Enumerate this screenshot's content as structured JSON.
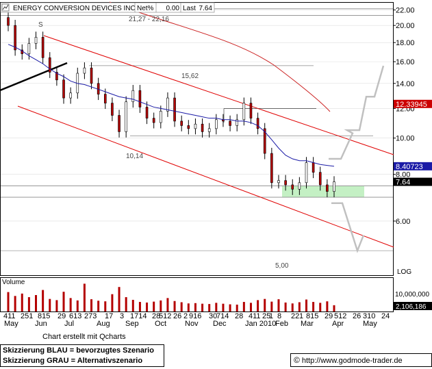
{
  "header": {
    "name": "ENERGY CONVERSION DEVICES INC",
    "net_label": "Net%",
    "net_value": "0.00",
    "last_label": "Last",
    "last_value": "7.64"
  },
  "price_axis": {
    "ticks": [
      "22.00",
      "20.00",
      "18.00",
      "16.00",
      "14.00",
      "12.00",
      "10.00",
      "8.00",
      "6.00"
    ],
    "scale_label": "LOG"
  },
  "price_tags": [
    {
      "text": "12.33945",
      "bg": "#cc0000",
      "fg": "#ffffff"
    },
    {
      "text": "8.40723",
      "bg": "#1a1aa6",
      "fg": "#ffffff"
    },
    {
      "text": "7.64",
      "bg": "#000000",
      "fg": "#ffffff"
    }
  ],
  "annotations": {
    "s_mark": "S",
    "resistance_label": "21,27 - 22,16",
    "level_1562": "15,62",
    "level_1014": "10,14",
    "level_500": "5,00"
  },
  "volume_panel": {
    "title": "Volume",
    "axis_label": "10,000,000",
    "value_tag": "2,106,186"
  },
  "x_axis": {
    "day_labels": [
      "411",
      "251",
      "815",
      "29",
      "613",
      "273",
      "17",
      "3",
      "1714",
      "28",
      "512",
      "26",
      "2",
      "916",
      "30",
      "714",
      "28",
      "411",
      "25",
      "1",
      "8",
      "22",
      "1",
      "815",
      "29",
      "512",
      "26",
      "310",
      "24"
    ],
    "month_labels": [
      "May",
      "Jun",
      "Jul",
      "Aug",
      "Sep",
      "Oct",
      "Nov",
      "Dec",
      "Jan 2010",
      "Feb",
      "Mar",
      "Apr",
      "May"
    ]
  },
  "chart_data": {
    "type": "candlestick",
    "title": "ENERGY CONVERSION DEVICES INC",
    "y_scale": "log",
    "ylim": [
      4.3,
      23.0
    ],
    "x": [
      "2009-05-04",
      "2009-05-11",
      "2009-05-18",
      "2009-05-25",
      "2009-06-01",
      "2009-06-08",
      "2009-06-15",
      "2009-06-22",
      "2009-06-29",
      "2009-07-06",
      "2009-07-13",
      "2009-07-20",
      "2009-07-27",
      "2009-08-03",
      "2009-08-10",
      "2009-08-17",
      "2009-08-24",
      "2009-08-31",
      "2009-09-07",
      "2009-09-14",
      "2009-09-21",
      "2009-09-28",
      "2009-10-05",
      "2009-10-12",
      "2009-10-19",
      "2009-10-26",
      "2009-11-02",
      "2009-11-09",
      "2009-11-16",
      "2009-11-23",
      "2009-11-30",
      "2009-12-07",
      "2009-12-14",
      "2009-12-21",
      "2009-12-28",
      "2010-01-04",
      "2010-01-11",
      "2010-01-18",
      "2010-01-25",
      "2010-02-01",
      "2010-02-08",
      "2010-02-15",
      "2010-02-22",
      "2010-03-01",
      "2010-03-08",
      "2010-03-15",
      "2010-03-22",
      "2010-03-29"
    ],
    "close": [
      20.0,
      17.2,
      16.8,
      17.9,
      18.6,
      16.4,
      15.0,
      14.3,
      12.8,
      13.2,
      14.9,
      15.4,
      14.0,
      13.1,
      12.4,
      11.5,
      10.4,
      12.5,
      13.4,
      12.1,
      11.3,
      11.0,
      11.8,
      12.8,
      11.1,
      10.8,
      10.6,
      10.9,
      10.4,
      10.6,
      11.2,
      11.1,
      10.8,
      11.2,
      12.4,
      11.3,
      10.6,
      9.1,
      7.6,
      7.7,
      7.5,
      7.3,
      7.6,
      8.6,
      8.1,
      7.5,
      7.2,
      7.64
    ],
    "ma_close": [
      17.8,
      17.5,
      17.1,
      16.6,
      16.2,
      15.8,
      15.3,
      14.9,
      14.6,
      14.2,
      14.0,
      13.9,
      13.7,
      13.5,
      13.3,
      13.1,
      12.9,
      12.8,
      12.7,
      12.5,
      12.3,
      12.1,
      12.0,
      11.9,
      11.8,
      11.7,
      11.6,
      11.5,
      11.4,
      11.3,
      11.3,
      11.2,
      11.2,
      11.1,
      11.1,
      11.0,
      10.8,
      10.4,
      9.9,
      9.4,
      9.0,
      8.8,
      8.7,
      8.7,
      8.6,
      8.5,
      8.45,
      8.40723
    ],
    "volume_millions": [
      6.5,
      5.2,
      6.0,
      4.8,
      5.5,
      7.2,
      4.2,
      3.8,
      6.6,
      4.5,
      3.7,
      9.3,
      4.1,
      3.6,
      3.4,
      5.8,
      8.2,
      4.8,
      3.9,
      3.2,
      3.0,
      3.3,
      3.7,
      4.5,
      3.5,
      3.1,
      2.7,
      2.8,
      2.6,
      2.5,
      2.9,
      2.6,
      2.4,
      2.3,
      3.2,
      2.9,
      3.8,
      4.2,
      3.3,
      4.1,
      3.0,
      2.7,
      3.1,
      4.0,
      3.2,
      2.9,
      3.4,
      2.1
    ],
    "levels": [
      {
        "value": 22.16,
        "label": "21,27 - 22,16"
      },
      {
        "value": 21.27,
        "label": "21,27 - 22,16"
      },
      {
        "value": 15.62,
        "label": "15,62"
      },
      {
        "value": 10.14,
        "label": "10,14"
      },
      {
        "value": 5.0,
        "label": "5,00"
      }
    ],
    "current_price": 7.64,
    "resistance_trend": 12.33945,
    "moving_average": 8.40723,
    "volume_last": 2106186,
    "legend": [
      {
        "name": "Skizzierung BLAU = bevorzugtes Szenario"
      },
      {
        "name": "Skizzierung GRAU = Alternativszenario"
      }
    ],
    "colors": {
      "up": "#ffffff",
      "down": "#b40000",
      "trend": "#e00000",
      "ma": "#1a1aa6",
      "resistance": "#cc2222",
      "scenario": "#c0c0c0",
      "zone": "#c4f0c4"
    }
  },
  "footer": {
    "credit": "Chart erstellt mit Qcharts",
    "legend_line1": "Skizzierung BLAU = bevorzugtes Szenario",
    "legend_line2": "Skizzierung GRAU = Alternativszenario",
    "copyright_symbol": "©",
    "url": "http://www.godmode-trader.de"
  }
}
